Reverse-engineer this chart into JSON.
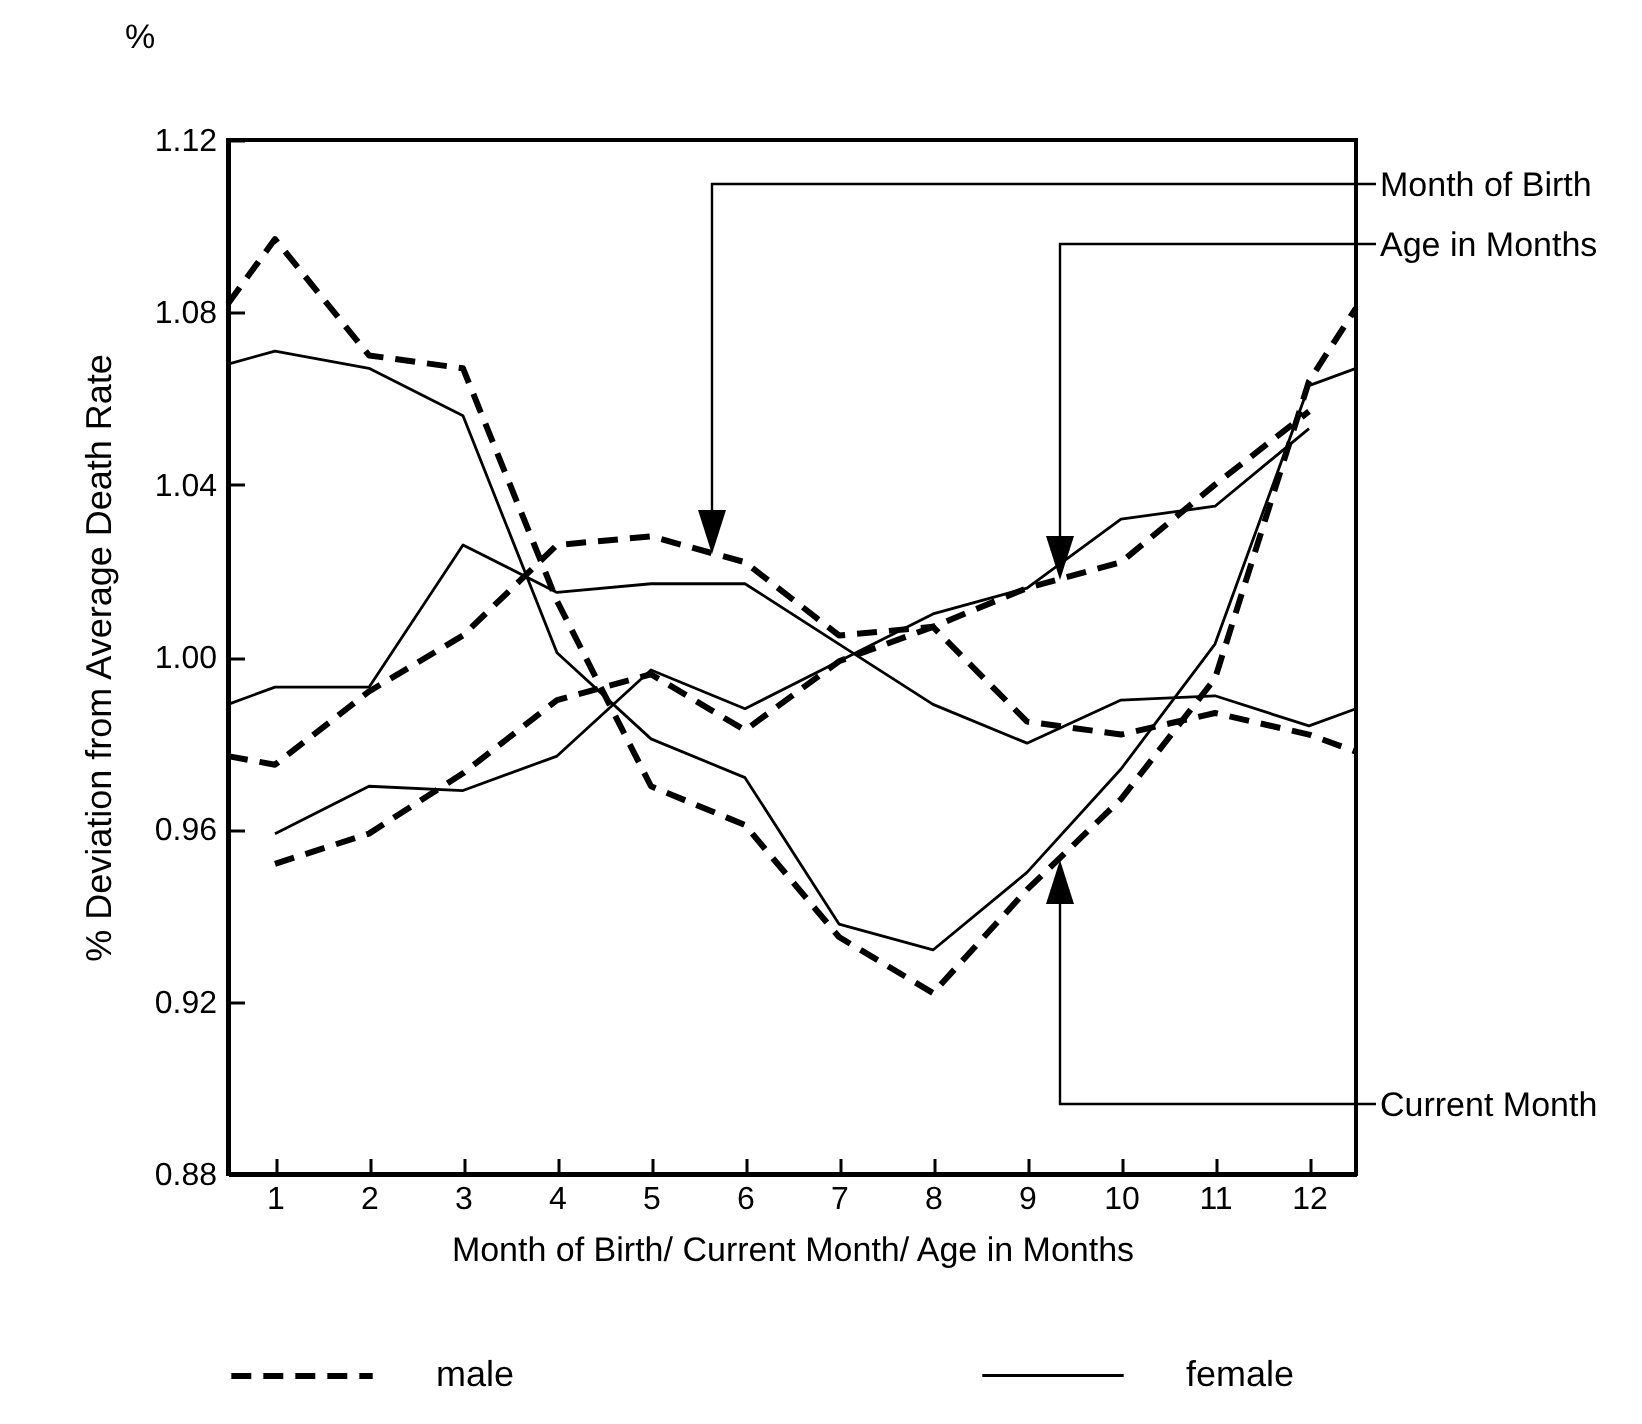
{
  "chart_data": {
    "type": "line",
    "xlabel": "Month of Birth/ Current Month/ Age in Months",
    "ylabel": "% Deviation from Average Death Rate",
    "annotations": [
      "%",
      "Month of Birth",
      "Age in Months",
      "Current Month"
    ],
    "xlim": [
      0.5,
      12.5
    ],
    "xticks": [
      1,
      2,
      3,
      4,
      5,
      6,
      7,
      8,
      9,
      10,
      11,
      12
    ],
    "ylim": [
      0.88,
      1.12
    ],
    "yticks": [
      0.88,
      0.92,
      0.96,
      {
        "value": 1,
        "label": "1.00"
      },
      1.04,
      1.08,
      1.12
    ],
    "grid": false,
    "legend": "bottom",
    "marker": "none",
    "series": [
      {
        "name": "male",
        "color": "#000000",
        "line_style": "dashed",
        "x": [
          0.5,
          1,
          2,
          3,
          4,
          5,
          6,
          7,
          8,
          9,
          10,
          11,
          12,
          12.5
        ],
        "values": [
          1.082,
          1.097,
          1.07,
          1.067,
          1.013,
          0.97,
          0.961,
          0.935,
          0.922,
          0.946,
          0.967,
          0.995,
          1.064,
          1.081
        ]
      },
      {
        "name": "female",
        "color": "#000000",
        "line_style": "solid",
        "x": [
          0.5,
          1,
          2,
          3,
          4,
          5,
          6,
          7,
          8,
          9,
          10,
          11,
          12,
          12.5
        ],
        "values": [
          1.068,
          1.071,
          1.067,
          1.056,
          1.001,
          0.981,
          0.972,
          0.938,
          0.932,
          0.95,
          0.974,
          1.003,
          1.063,
          1.067
        ]
      },
      {
        "color": "#000000",
        "line_style": "dashed",
        "x": [
          0.5,
          1,
          2,
          3,
          4,
          5,
          6,
          7,
          8,
          9,
          10,
          11,
          12,
          12.5
        ],
        "values": [
          0.977,
          0.975,
          0.992,
          1.005,
          1.026,
          1.028,
          1.022,
          1.005,
          1.007,
          0.985,
          0.982,
          0.987,
          0.982,
          0.978
        ]
      },
      {
        "color": "#000000",
        "line_style": "solid",
        "x": [
          0.5,
          1,
          2,
          3,
          4,
          5,
          6,
          7,
          8,
          9,
          10,
          11,
          12,
          12.5
        ],
        "values": [
          0.989,
          0.993,
          0.993,
          1.026,
          1.015,
          1.017,
          1.017,
          1.003,
          0.989,
          0.98,
          0.99,
          0.991,
          0.984,
          0.988
        ]
      },
      {
        "color": "#000000",
        "line_style": "dashed",
        "x": [
          1,
          2,
          3,
          4,
          5,
          6,
          7,
          8,
          9,
          10,
          11,
          12
        ],
        "values": [
          0.952,
          0.959,
          0.973,
          0.99,
          0.996,
          0.983,
          0.999,
          1.007,
          1.016,
          1.022,
          1.04,
          1.057
        ]
      },
      {
        "color": "#000000",
        "line_style": "solid",
        "x": [
          1,
          2,
          3,
          4,
          5,
          6,
          7,
          8,
          9,
          10,
          11,
          12
        ],
        "values": [
          0.959,
          0.97,
          0.969,
          0.977,
          0.997,
          0.988,
          0.999,
          1.01,
          1.016,
          1.032,
          1.035,
          1.053
        ]
      }
    ]
  }
}
